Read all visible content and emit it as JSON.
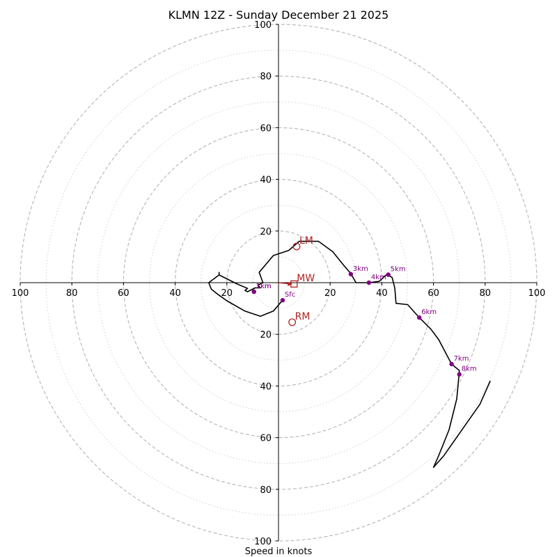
{
  "chart_data": {
    "type": "hodograph",
    "title": "KLMN 12Z - Sunday December 21 2025",
    "xlabel": "Speed in knots",
    "axis_max": 100,
    "rings_major": [
      20,
      40,
      60,
      80,
      100
    ],
    "rings_minor": [
      10,
      30,
      50,
      70,
      90
    ],
    "tick_labels": {
      "x_left": [
        "100",
        "80",
        "60",
        "40",
        "20"
      ],
      "x_right": [
        "20",
        "40",
        "60",
        "80",
        "100"
      ],
      "y_top": [
        "100",
        "80",
        "60",
        "40",
        "20"
      ],
      "y_bottom": [
        "20",
        "40",
        "60",
        "80",
        "100"
      ]
    },
    "x_ticks_left": [
      -100,
      -80,
      -60,
      -40,
      -20
    ],
    "x_ticks_right": [
      20,
      40,
      60,
      80,
      100
    ],
    "y_ticks_top": [
      100,
      80,
      60,
      40,
      20
    ],
    "y_ticks_bottom": [
      -20,
      -40,
      -60,
      -80,
      -100
    ],
    "hodograph_line": {
      "color": "#000000",
      "points": [
        [
          1.6,
          -6.8
        ],
        [
          -2,
          -11
        ],
        [
          -7,
          -13
        ],
        [
          -13,
          -11
        ],
        [
          -20,
          -7
        ],
        [
          -23.5,
          -4.5
        ],
        [
          -26,
          -2.5
        ],
        [
          -27,
          0
        ],
        [
          -23,
          3
        ],
        [
          -23,
          4
        ],
        [
          -23,
          3
        ],
        [
          -21,
          2
        ],
        [
          -16,
          -0.5
        ],
        [
          -12,
          -2.2
        ],
        [
          -13,
          -3
        ],
        [
          -12,
          -3.5
        ],
        [
          -9,
          -2
        ],
        [
          -7,
          -2
        ],
        [
          -8,
          -1
        ],
        [
          -6,
          0
        ],
        [
          -7.5,
          4
        ],
        [
          -2,
          10.5
        ],
        [
          4,
          12.5
        ],
        [
          8,
          16
        ],
        [
          15.5,
          16
        ],
        [
          21,
          12
        ],
        [
          25,
          7
        ],
        [
          28,
          3.5
        ],
        [
          30,
          0
        ],
        [
          35,
          0
        ],
        [
          39,
          0.5
        ],
        [
          42,
          3.3
        ],
        [
          44,
          2
        ],
        [
          45,
          -2
        ],
        [
          45.5,
          -8
        ],
        [
          50,
          -8.5
        ],
        [
          54.5,
          -13.5
        ],
        [
          59,
          -18
        ],
        [
          62,
          -22
        ],
        [
          67,
          -31.5
        ],
        [
          70,
          -34
        ],
        [
          69.5,
          -40
        ],
        [
          69,
          -45
        ],
        [
          66,
          -57
        ],
        [
          62,
          -67
        ],
        [
          60,
          -71.5
        ],
        [
          64,
          -67
        ],
        [
          78,
          -47
        ],
        [
          82,
          -38
        ]
      ]
    },
    "height_markers": {
      "color": "#800080",
      "points": [
        {
          "label": "Sfc",
          "x": 1.6,
          "y": -6.8
        },
        {
          "label": "1km",
          "x": -9.5,
          "y": -3.5
        },
        {
          "label": "2km",
          "x": -9.5,
          "y": -3.5
        },
        {
          "label": "3km",
          "x": 28,
          "y": 3.3
        },
        {
          "label": "4km",
          "x": 35,
          "y": 0
        },
        {
          "label": "5km",
          "x": 42.5,
          "y": 3.1
        },
        {
          "label": "6km",
          "x": 54.5,
          "y": -13.5
        },
        {
          "label": "7km",
          "x": 67,
          "y": -31.5
        },
        {
          "label": "8km",
          "x": 70,
          "y": -35.5
        }
      ]
    },
    "storm_motion": {
      "color": "#b22222",
      "points": [
        {
          "label": "LM",
          "x": 7,
          "y": 14,
          "marker": "circle"
        },
        {
          "label": "RM",
          "x": 5.3,
          "y": -15.3,
          "marker": "circle"
        },
        {
          "label": "MW",
          "x": 6,
          "y": -0.5,
          "marker": "square"
        }
      ]
    },
    "grid": true
  }
}
